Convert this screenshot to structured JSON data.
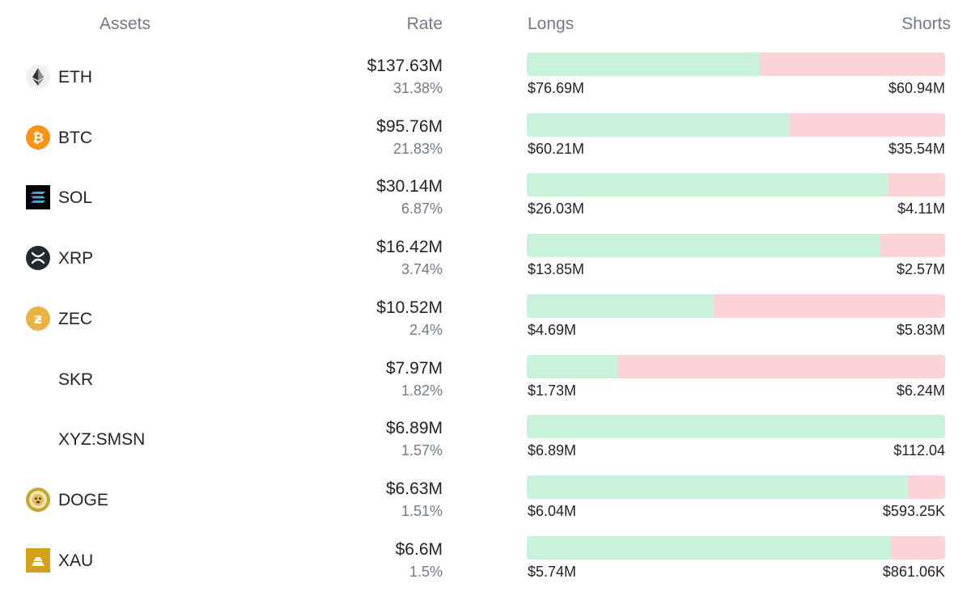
{
  "header": {
    "assets": "Assets",
    "rate": "Rate",
    "longs": "Longs",
    "shorts": "Shorts"
  },
  "colors": {
    "long_bar": "#c9f2da",
    "short_bar": "#fdd4d6"
  },
  "assets": [
    {
      "symbol": "ETH",
      "icon": "eth-icon",
      "rate": "$137.63M",
      "pct": "31.38%",
      "longs": "$76.69M",
      "shorts": "$60.94M",
      "long_fraction": 0.557
    },
    {
      "symbol": "BTC",
      "icon": "btc-icon",
      "rate": "$95.76M",
      "pct": "21.83%",
      "longs": "$60.21M",
      "shorts": "$35.54M",
      "long_fraction": 0.629
    },
    {
      "symbol": "SOL",
      "icon": "sol-icon",
      "rate": "$30.14M",
      "pct": "6.87%",
      "longs": "$26.03M",
      "shorts": "$4.11M",
      "long_fraction": 0.864
    },
    {
      "symbol": "XRP",
      "icon": "xrp-icon",
      "rate": "$16.42M",
      "pct": "3.74%",
      "longs": "$13.85M",
      "shorts": "$2.57M",
      "long_fraction": 0.844
    },
    {
      "symbol": "ZEC",
      "icon": "zec-icon",
      "rate": "$10.52M",
      "pct": "2.4%",
      "longs": "$4.69M",
      "shorts": "$5.83M",
      "long_fraction": 0.446
    },
    {
      "symbol": "SKR",
      "icon": "",
      "rate": "$7.97M",
      "pct": "1.82%",
      "longs": "$1.73M",
      "shorts": "$6.24M",
      "long_fraction": 0.217
    },
    {
      "symbol": "XYZ:SMSN",
      "icon": "",
      "rate": "$6.89M",
      "pct": "1.57%",
      "longs": "$6.89M",
      "shorts": "$112.04",
      "long_fraction": 1.0
    },
    {
      "symbol": "DOGE",
      "icon": "doge-icon",
      "rate": "$6.63M",
      "pct": "1.51%",
      "longs": "$6.04M",
      "shorts": "$593.25K",
      "long_fraction": 0.911
    },
    {
      "symbol": "XAU",
      "icon": "xau-icon",
      "rate": "$6.6M",
      "pct": "1.5%",
      "longs": "$5.74M",
      "shorts": "$861.06K",
      "long_fraction": 0.87
    }
  ]
}
